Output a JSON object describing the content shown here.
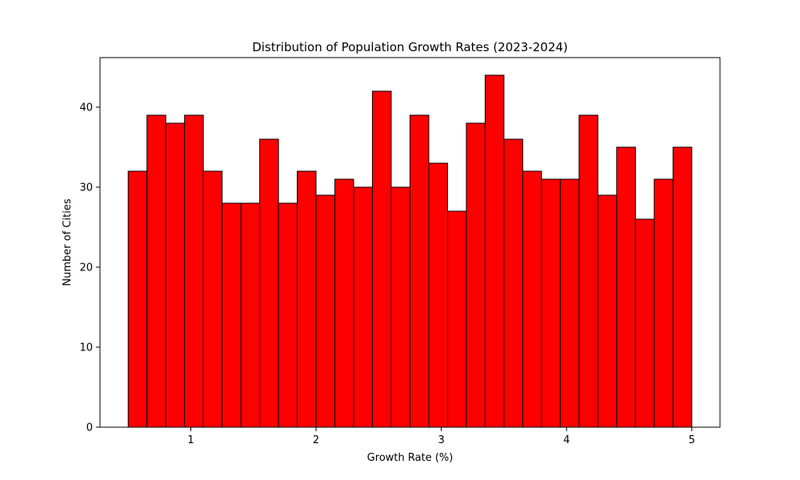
{
  "chart_data": {
    "type": "bar",
    "subtype": "histogram",
    "title": "Distribution of Population Growth Rates (2023-2024)",
    "xlabel": "Growth Rate (%)",
    "ylabel": "Number of Cities",
    "bin_range": [
      0.5,
      5.0
    ],
    "bin_count": 30,
    "values": [
      32,
      39,
      38,
      39,
      32,
      28,
      28,
      36,
      28,
      32,
      29,
      31,
      30,
      42,
      30,
      39,
      33,
      27,
      38,
      44,
      36,
      32,
      31,
      31,
      39,
      29,
      35,
      26,
      31,
      35
    ],
    "xlim": [
      0.275,
      5.225
    ],
    "ylim": [
      0,
      46.2
    ],
    "xticks": [
      1,
      2,
      3,
      4,
      5
    ],
    "xtick_labels": [
      "1",
      "2",
      "3",
      "4",
      "5"
    ],
    "yticks": [
      0,
      10,
      20,
      30,
      40
    ],
    "ytick_labels": [
      "0",
      "10",
      "20",
      "30",
      "40"
    ],
    "grid": false,
    "bar_color": "#ff0000",
    "edge_color": "#000000"
  }
}
